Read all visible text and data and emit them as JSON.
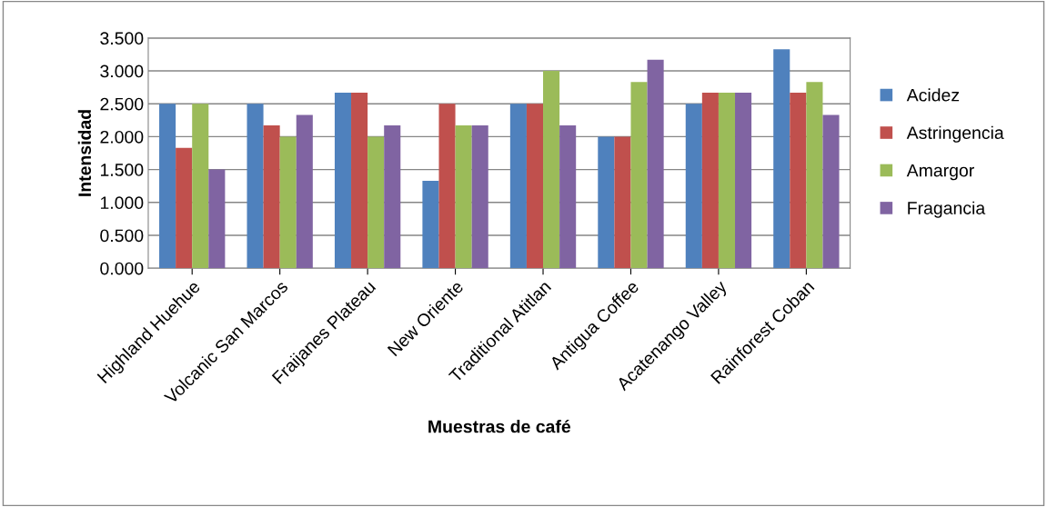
{
  "chart_data": {
    "type": "bar",
    "xlabel": "Muestras de café",
    "ylabel": "Intensidad",
    "categories": [
      "Highland Huehue",
      "Volcanic San Marcos",
      "Fraijanes Plateau",
      "New Oriente",
      "Traditional Atitlan",
      "Antigua Coffee",
      "Acatenango Valley",
      "Rainforest Coban"
    ],
    "series": [
      {
        "name": "Acidez",
        "color": "#4f81bd",
        "values": [
          2.5,
          2.5,
          2.67,
          1.33,
          2.5,
          2.0,
          2.5,
          3.33
        ]
      },
      {
        "name": "Astringencia",
        "color": "#c0504d",
        "values": [
          1.83,
          2.17,
          2.67,
          2.5,
          2.5,
          2.0,
          2.67,
          2.67
        ]
      },
      {
        "name": "Amargor",
        "color": "#9bbb59",
        "values": [
          2.5,
          2.0,
          2.0,
          2.17,
          3.0,
          2.83,
          2.67,
          2.83
        ]
      },
      {
        "name": "Fragancia",
        "color": "#8064a2",
        "values": [
          1.5,
          2.33,
          2.17,
          2.17,
          2.17,
          3.17,
          2.67,
          2.33
        ]
      }
    ],
    "ylim": [
      0,
      3.5
    ],
    "yticks": [
      {
        "value": 0,
        "label": "0.000"
      },
      {
        "value": 0.5,
        "label": "0.500"
      },
      {
        "value": 1,
        "label": "1.000"
      },
      {
        "value": 1.5,
        "label": "1.500"
      },
      {
        "value": 2,
        "label": "2.000"
      },
      {
        "value": 2.5,
        "label": "2.500"
      },
      {
        "value": 3,
        "label": "3.000"
      },
      {
        "value": 3.5,
        "label": "3.500"
      }
    ],
    "grid": "y",
    "legend": "right"
  }
}
